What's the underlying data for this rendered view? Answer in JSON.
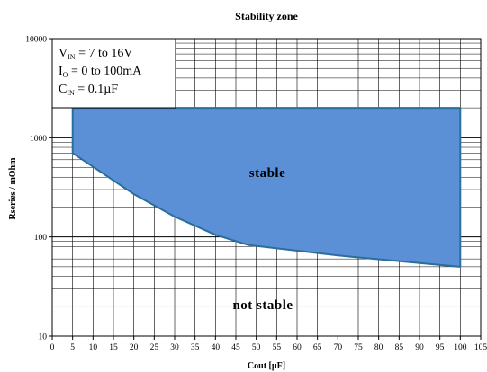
{
  "chart_data": {
    "type": "area",
    "title": "Stability zone",
    "xlabel": "Cout [µF]",
    "ylabel": "Rseries / mOhm",
    "xlim": [
      0,
      105
    ],
    "ylim": [
      10,
      10000
    ],
    "y_scale": "log",
    "grid": true,
    "x_ticks": [
      0,
      5,
      10,
      15,
      20,
      25,
      30,
      35,
      40,
      45,
      50,
      55,
      60,
      65,
      70,
      75,
      80,
      85,
      90,
      95,
      100,
      105
    ],
    "x_tick_labels": [
      "0",
      "5",
      "10",
      "15",
      "20",
      "25",
      "30",
      "35",
      "40",
      "45",
      "50",
      "55",
      "60",
      "65",
      "70",
      "75",
      "80",
      "85",
      "90",
      "95",
      "100",
      "105"
    ],
    "y_ticks": [
      10,
      100,
      1000,
      10000
    ],
    "y_tick_labels": [
      "10",
      "100",
      "1000",
      "10000"
    ],
    "region": {
      "label": "stable",
      "color": "#5b8fd6",
      "border": "#2c6e9b",
      "upper_bound": [
        {
          "x": 5,
          "y": 2000
        },
        {
          "x": 100,
          "y": 2000
        }
      ],
      "lower_bound": [
        {
          "x": 5,
          "y": 700
        },
        {
          "x": 20,
          "y": 270
        },
        {
          "x": 30,
          "y": 160
        },
        {
          "x": 40,
          "y": 105
        },
        {
          "x": 48,
          "y": 83
        },
        {
          "x": 70,
          "y": 65
        },
        {
          "x": 85,
          "y": 57
        },
        {
          "x": 100,
          "y": 50
        }
      ]
    },
    "annotations": {
      "outside_label": "not stable"
    },
    "legend_box": {
      "placement": "top-left",
      "lines": [
        {
          "main": "V",
          "sub": "IN",
          "rest": " = 7 to 16V"
        },
        {
          "main": "I",
          "sub": "O",
          "rest": " = 0 to 100mA"
        },
        {
          "main": "C",
          "sub": "IN",
          "rest": " = 0.1µF"
        }
      ]
    }
  }
}
